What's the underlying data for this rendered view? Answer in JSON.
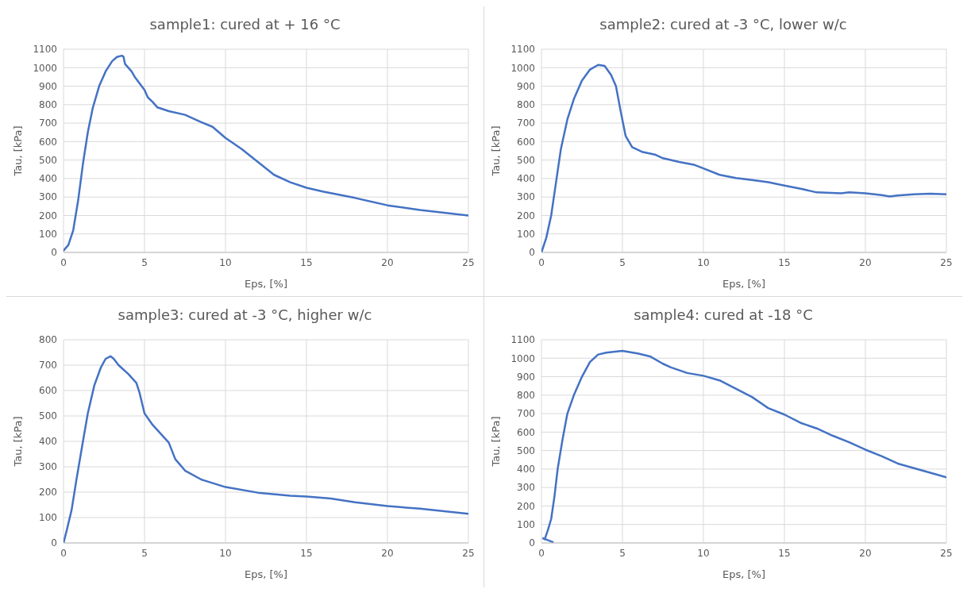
{
  "chart_data": [
    {
      "type": "line",
      "title": "sample1: cured at + 16 °C",
      "xlabel": "Eps, [%]",
      "ylabel": "Tau, [kPa]",
      "xlim": [
        0,
        25
      ],
      "xticks": [
        0,
        5,
        10,
        15,
        20,
        25
      ],
      "ylim": [
        0,
        1100
      ],
      "yticks": [
        0,
        100,
        200,
        300,
        400,
        500,
        600,
        700,
        800,
        900,
        1000,
        1100
      ],
      "grid": true,
      "legend": false,
      "marker": "none",
      "line_style": "solid",
      "series": [
        {
          "color": "#4472c4",
          "x": [
            0,
            0.3,
            0.6,
            0.9,
            1.2,
            1.5,
            1.8,
            2.2,
            2.6,
            3.0,
            3.3,
            3.6,
            3.7,
            3.8,
            4.2,
            4.4,
            5,
            5.2,
            5.5,
            5.8,
            6.5,
            7.5,
            8.5,
            9.2,
            10,
            11,
            12,
            13,
            14,
            15,
            16,
            18,
            20,
            22,
            25
          ],
          "values": [
            10,
            40,
            120,
            280,
            480,
            650,
            780,
            900,
            980,
            1035,
            1058,
            1065,
            1060,
            1020,
            980,
            950,
            880,
            840,
            815,
            785,
            765,
            745,
            705,
            680,
            620,
            560,
            490,
            420,
            380,
            350,
            330,
            295,
            255,
            230,
            200
          ]
        }
      ]
    },
    {
      "type": "line",
      "title": "sample2: cured at -3 °C, lower w/c",
      "xlabel": "Eps, [%]",
      "ylabel": "Tau, [kPa]",
      "xlim": [
        0,
        25
      ],
      "xticks": [
        0,
        5,
        10,
        15,
        20,
        25
      ],
      "ylim": [
        0,
        1100
      ],
      "yticks": [
        0,
        100,
        200,
        300,
        400,
        500,
        600,
        700,
        800,
        900,
        1000,
        1100
      ],
      "grid": true,
      "legend": false,
      "marker": "none",
      "line_style": "solid",
      "series": [
        {
          "color": "#4472c4",
          "x": [
            0,
            0.3,
            0.6,
            0.9,
            1.2,
            1.6,
            2,
            2.5,
            3,
            3.5,
            3.9,
            4.3,
            4.6,
            4.9,
            5.2,
            5.6,
            6.2,
            7,
            7.5,
            8.5,
            9.4,
            10,
            11,
            12,
            13,
            14,
            15,
            16,
            17,
            18.5,
            19,
            20,
            21,
            21.5,
            22,
            23,
            24,
            25
          ],
          "values": [
            0,
            80,
            200,
            380,
            560,
            720,
            830,
            930,
            990,
            1015,
            1010,
            960,
            900,
            760,
            630,
            570,
            545,
            530,
            510,
            490,
            475,
            455,
            420,
            403,
            392,
            380,
            362,
            345,
            325,
            320,
            325,
            320,
            310,
            303,
            308,
            315,
            318,
            315
          ]
        }
      ]
    },
    {
      "type": "line",
      "title": "sample3: cured at -3 °C, higher w/c",
      "xlabel": "Eps, [%]",
      "ylabel": "Tau, [kPa]",
      "xlim": [
        0,
        25
      ],
      "xticks": [
        0,
        5,
        10,
        15,
        20,
        25
      ],
      "ylim": [
        0,
        800
      ],
      "yticks": [
        0,
        100,
        200,
        300,
        400,
        500,
        600,
        700,
        800
      ],
      "grid": true,
      "legend": false,
      "marker": "none",
      "line_style": "solid",
      "series": [
        {
          "color": "#4472c4",
          "x": [
            0,
            0.2,
            0.5,
            0.8,
            1.2,
            1.5,
            1.9,
            2.3,
            2.6,
            2.9,
            3.1,
            3.4,
            4,
            4.5,
            4.7,
            5,
            5.5,
            6,
            6.5,
            6.9,
            7.5,
            8.5,
            10,
            12,
            14,
            15,
            16.5,
            18,
            20,
            22,
            25
          ],
          "values": [
            0,
            50,
            130,
            250,
            400,
            510,
            620,
            690,
            725,
            735,
            725,
            700,
            665,
            630,
            590,
            510,
            465,
            430,
            395,
            330,
            285,
            250,
            220,
            198,
            186,
            183,
            175,
            160,
            145,
            135,
            115
          ]
        }
      ]
    },
    {
      "type": "line",
      "title": "sample4: cured at -18 °C",
      "xlabel": "Eps, [%]",
      "ylabel": "Tau, [kPa]",
      "xlim": [
        0,
        25
      ],
      "xticks": [
        0,
        5,
        10,
        15,
        20,
        25
      ],
      "ylim": [
        0,
        1100
      ],
      "yticks": [
        0,
        100,
        200,
        300,
        400,
        500,
        600,
        700,
        800,
        900,
        1000,
        1100
      ],
      "grid": true,
      "legend": false,
      "marker": "none",
      "line_style": "solid",
      "series": [
        {
          "color": "#4472c4",
          "x": [
            0.7,
            0.1,
            0.2,
            0.4,
            0.6,
            0.8,
            1,
            1.3,
            1.6,
            2,
            2.5,
            3,
            3.5,
            4,
            5,
            6,
            6.7,
            7.5,
            8,
            9,
            10,
            11,
            12,
            13,
            14,
            15,
            16,
            17,
            18,
            19,
            20,
            21,
            22,
            23,
            24,
            25
          ],
          "values": [
            5,
            25,
            20,
            70,
            130,
            250,
            400,
            560,
            700,
            800,
            900,
            980,
            1020,
            1030,
            1040,
            1025,
            1010,
            970,
            950,
            920,
            905,
            880,
            835,
            790,
            730,
            695,
            650,
            620,
            580,
            545,
            505,
            470,
            430,
            405,
            380,
            355
          ]
        }
      ]
    }
  ]
}
